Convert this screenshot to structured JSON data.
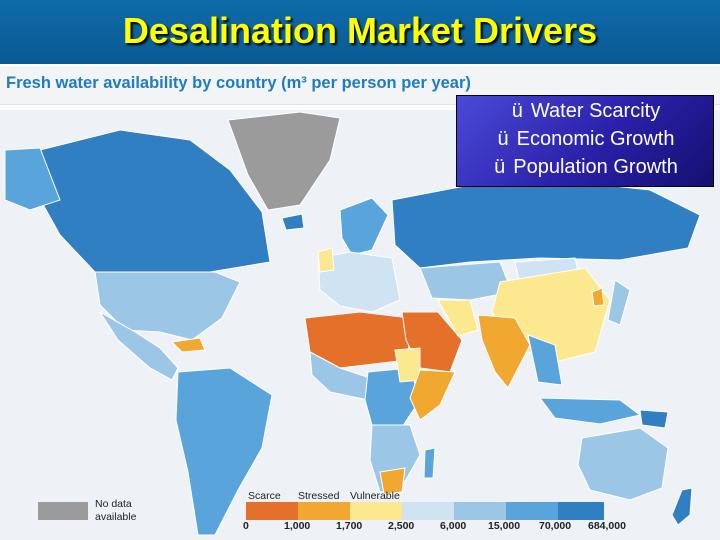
{
  "slide": {
    "title": "Desalination Market Drivers"
  },
  "map": {
    "subtitle": "Fresh water availability by country (m³ per person per year)"
  },
  "drivers": {
    "items": [
      "Water Scarcity",
      "Economic Growth",
      "Population Growth"
    ],
    "check": "ü"
  },
  "legend": {
    "no_data_label_line1": "No data",
    "no_data_label_line2": "available",
    "categories": [
      "Scarce",
      "Stressed",
      "Vulnerable"
    ],
    "ticks": [
      "0",
      "1,000",
      "1,700",
      "2,500",
      "6,000",
      "15,000",
      "70,000",
      "684,000"
    ],
    "colors": {
      "no_data": "#9b9b9b",
      "scarce": "#e5702a",
      "stressed": "#f0a830",
      "vulnerable": "#fce88e",
      "band_2500_6000": "#cfe3f2",
      "band_6000_15000": "#9bc6e6",
      "band_15000_70000": "#5aa4dc",
      "band_70000_plus": "#2f7fc2"
    }
  }
}
